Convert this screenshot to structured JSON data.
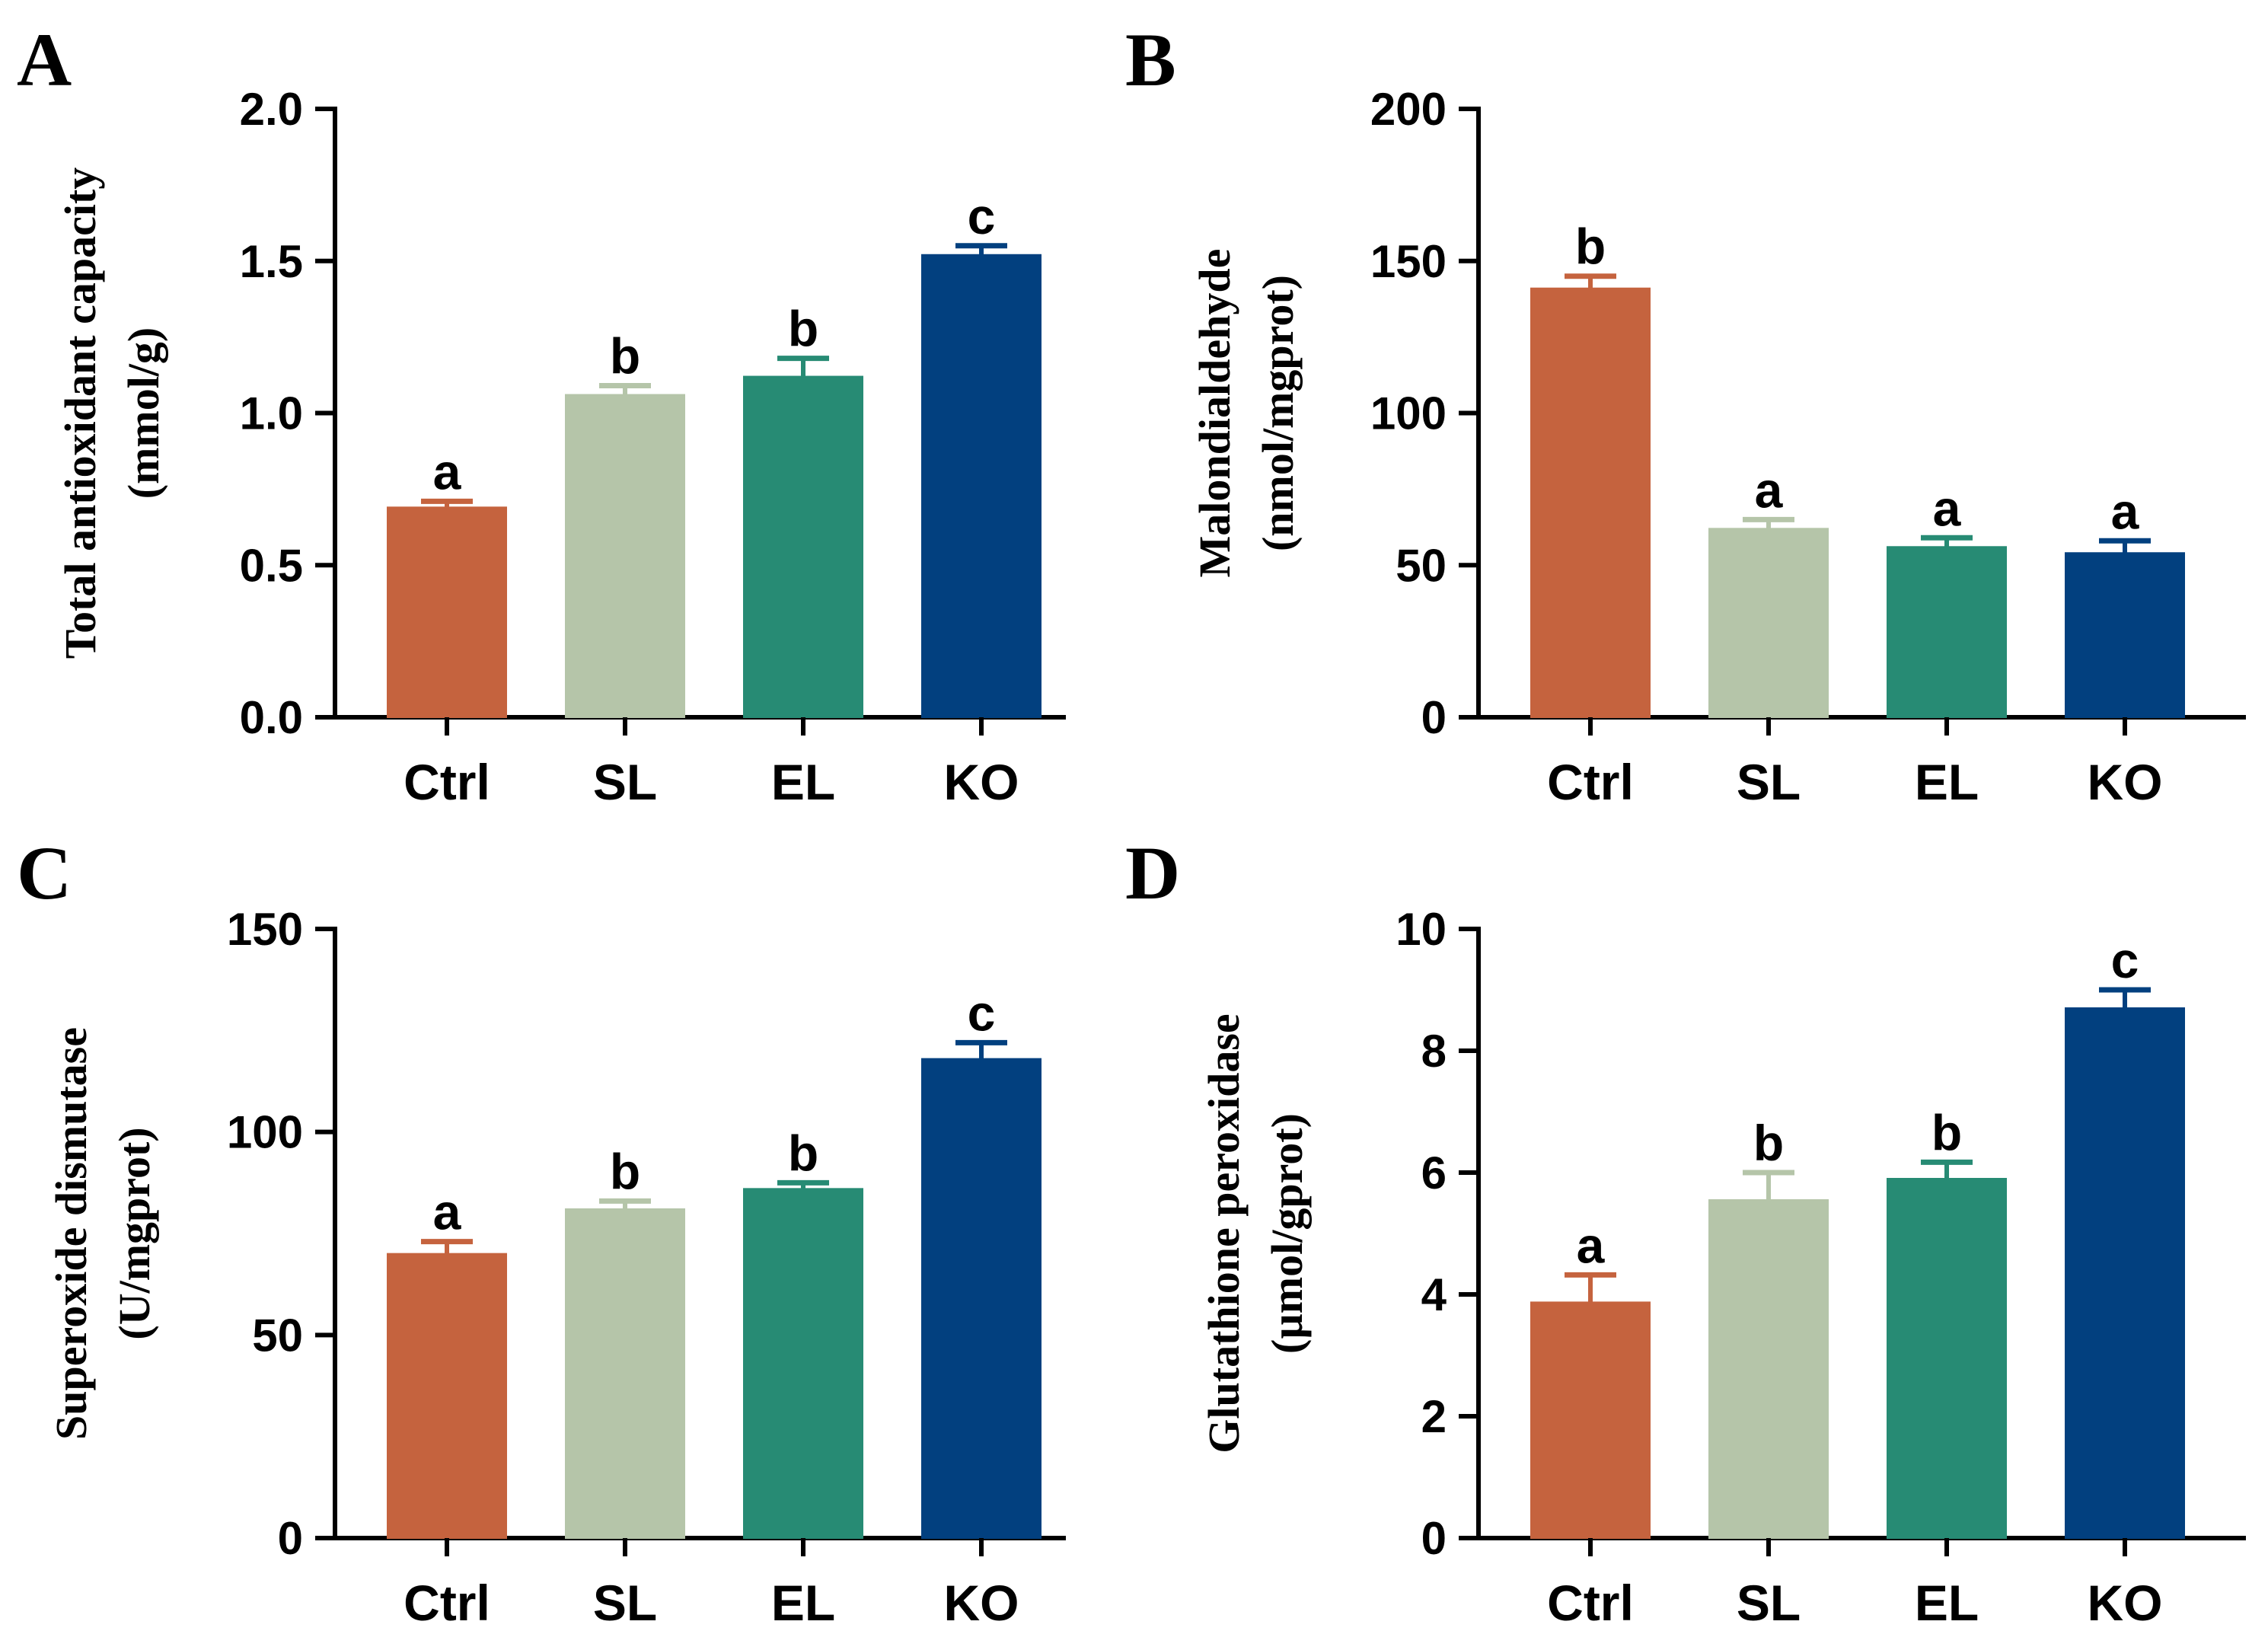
{
  "colors": {
    "Ctrl": "#c5633e",
    "SL": "#b5c5a9",
    "EL": "#278b74",
    "KO": "#02407f"
  },
  "chart_data": [
    {
      "panel": "A",
      "type": "bar",
      "categories": [
        "Ctrl",
        "SL",
        "EL",
        "KO"
      ],
      "values": [
        0.69,
        1.06,
        1.12,
        1.52
      ],
      "errors": [
        0.02,
        0.03,
        0.06,
        0.03
      ],
      "significance": [
        "a",
        "b",
        "b",
        "c"
      ],
      "ylabel_line1": "Total antioxidant capacity",
      "ylabel_line2": "(mmol/g)",
      "ylim": [
        0,
        2.0
      ],
      "yticks": [
        0,
        0.5,
        1.0,
        1.5,
        2.0
      ],
      "ytick_labels": [
        "0.0",
        "0.5",
        "1.0",
        "1.5",
        "2.0"
      ]
    },
    {
      "panel": "B",
      "type": "bar",
      "categories": [
        "Ctrl",
        "SL",
        "EL",
        "KO"
      ],
      "values": [
        141,
        62,
        56,
        54
      ],
      "errors": [
        4,
        3,
        3,
        4
      ],
      "significance": [
        "b",
        "a",
        "a",
        "a"
      ],
      "ylabel_line1": "Malondialdehyde",
      "ylabel_line2": "(nmol/mgprot)",
      "ylim": [
        0,
        200
      ],
      "yticks": [
        0,
        50,
        100,
        150,
        200
      ],
      "ytick_labels": [
        "0",
        "50",
        "100",
        "150",
        "200"
      ]
    },
    {
      "panel": "C",
      "type": "bar",
      "categories": [
        "Ctrl",
        "SL",
        "EL",
        "KO"
      ],
      "values": [
        70,
        81,
        86,
        118
      ],
      "errors": [
        3,
        2,
        1.5,
        4
      ],
      "significance": [
        "a",
        "b",
        "b",
        "c"
      ],
      "ylabel_line1": "Superoxide dismutase",
      "ylabel_line2": "(U/mgprot)",
      "ylim": [
        0,
        150
      ],
      "yticks": [
        0,
        50,
        100,
        150
      ],
      "ytick_labels": [
        "0",
        "50",
        "100",
        "150"
      ]
    },
    {
      "panel": "D",
      "type": "bar",
      "categories": [
        "Ctrl",
        "SL",
        "EL",
        "KO"
      ],
      "values": [
        3.87,
        5.55,
        5.9,
        8.7
      ],
      "errors": [
        0.45,
        0.45,
        0.27,
        0.3
      ],
      "significance": [
        "a",
        "b",
        "b",
        "c"
      ],
      "ylabel_line1": "Glutathione peroxidase",
      "ylabel_line2": "(µmol/gprot)",
      "ylim": [
        0,
        10
      ],
      "yticks": [
        0,
        2,
        4,
        6,
        8,
        10
      ],
      "ytick_labels": [
        "0",
        "2",
        "4",
        "6",
        "8",
        "10"
      ]
    }
  ]
}
